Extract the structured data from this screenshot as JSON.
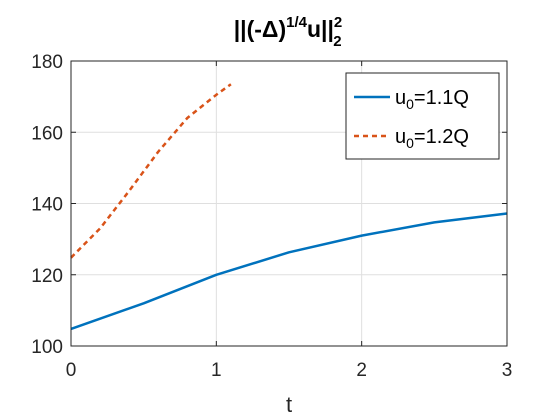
{
  "chart_data": {
    "type": "line",
    "title": "||(-Δ)",
    "title_exponent": "1/4",
    "title_var": "u||",
    "title_sup": "2",
    "title_sub": "2",
    "xlabel": "t",
    "ylabel": "",
    "xlim": [
      0,
      3
    ],
    "ylim": [
      100,
      180
    ],
    "xticks": [
      0,
      1,
      2,
      3
    ],
    "yticks": [
      100,
      120,
      140,
      160,
      180
    ],
    "grid": true,
    "legend_position": "top-right",
    "series": [
      {
        "name_main": "u",
        "name_sub": "0",
        "name_rest": "=1.1Q",
        "color": "#0072BD",
        "dash": "solid",
        "x": [
          0,
          0.5,
          1.0,
          1.5,
          2.0,
          2.5,
          3.0
        ],
        "y": [
          104.8,
          112.0,
          120.0,
          126.3,
          131.0,
          134.7,
          137.2
        ]
      },
      {
        "name_main": "u",
        "name_sub": "0",
        "name_rest": "=1.2Q",
        "color": "#D95319",
        "dash": "dashed",
        "x": [
          0,
          0.2,
          0.4,
          0.6,
          0.8,
          1.0,
          1.1
        ],
        "y": [
          124.8,
          133.0,
          143.5,
          154.5,
          164.0,
          170.5,
          173.5
        ]
      }
    ]
  }
}
